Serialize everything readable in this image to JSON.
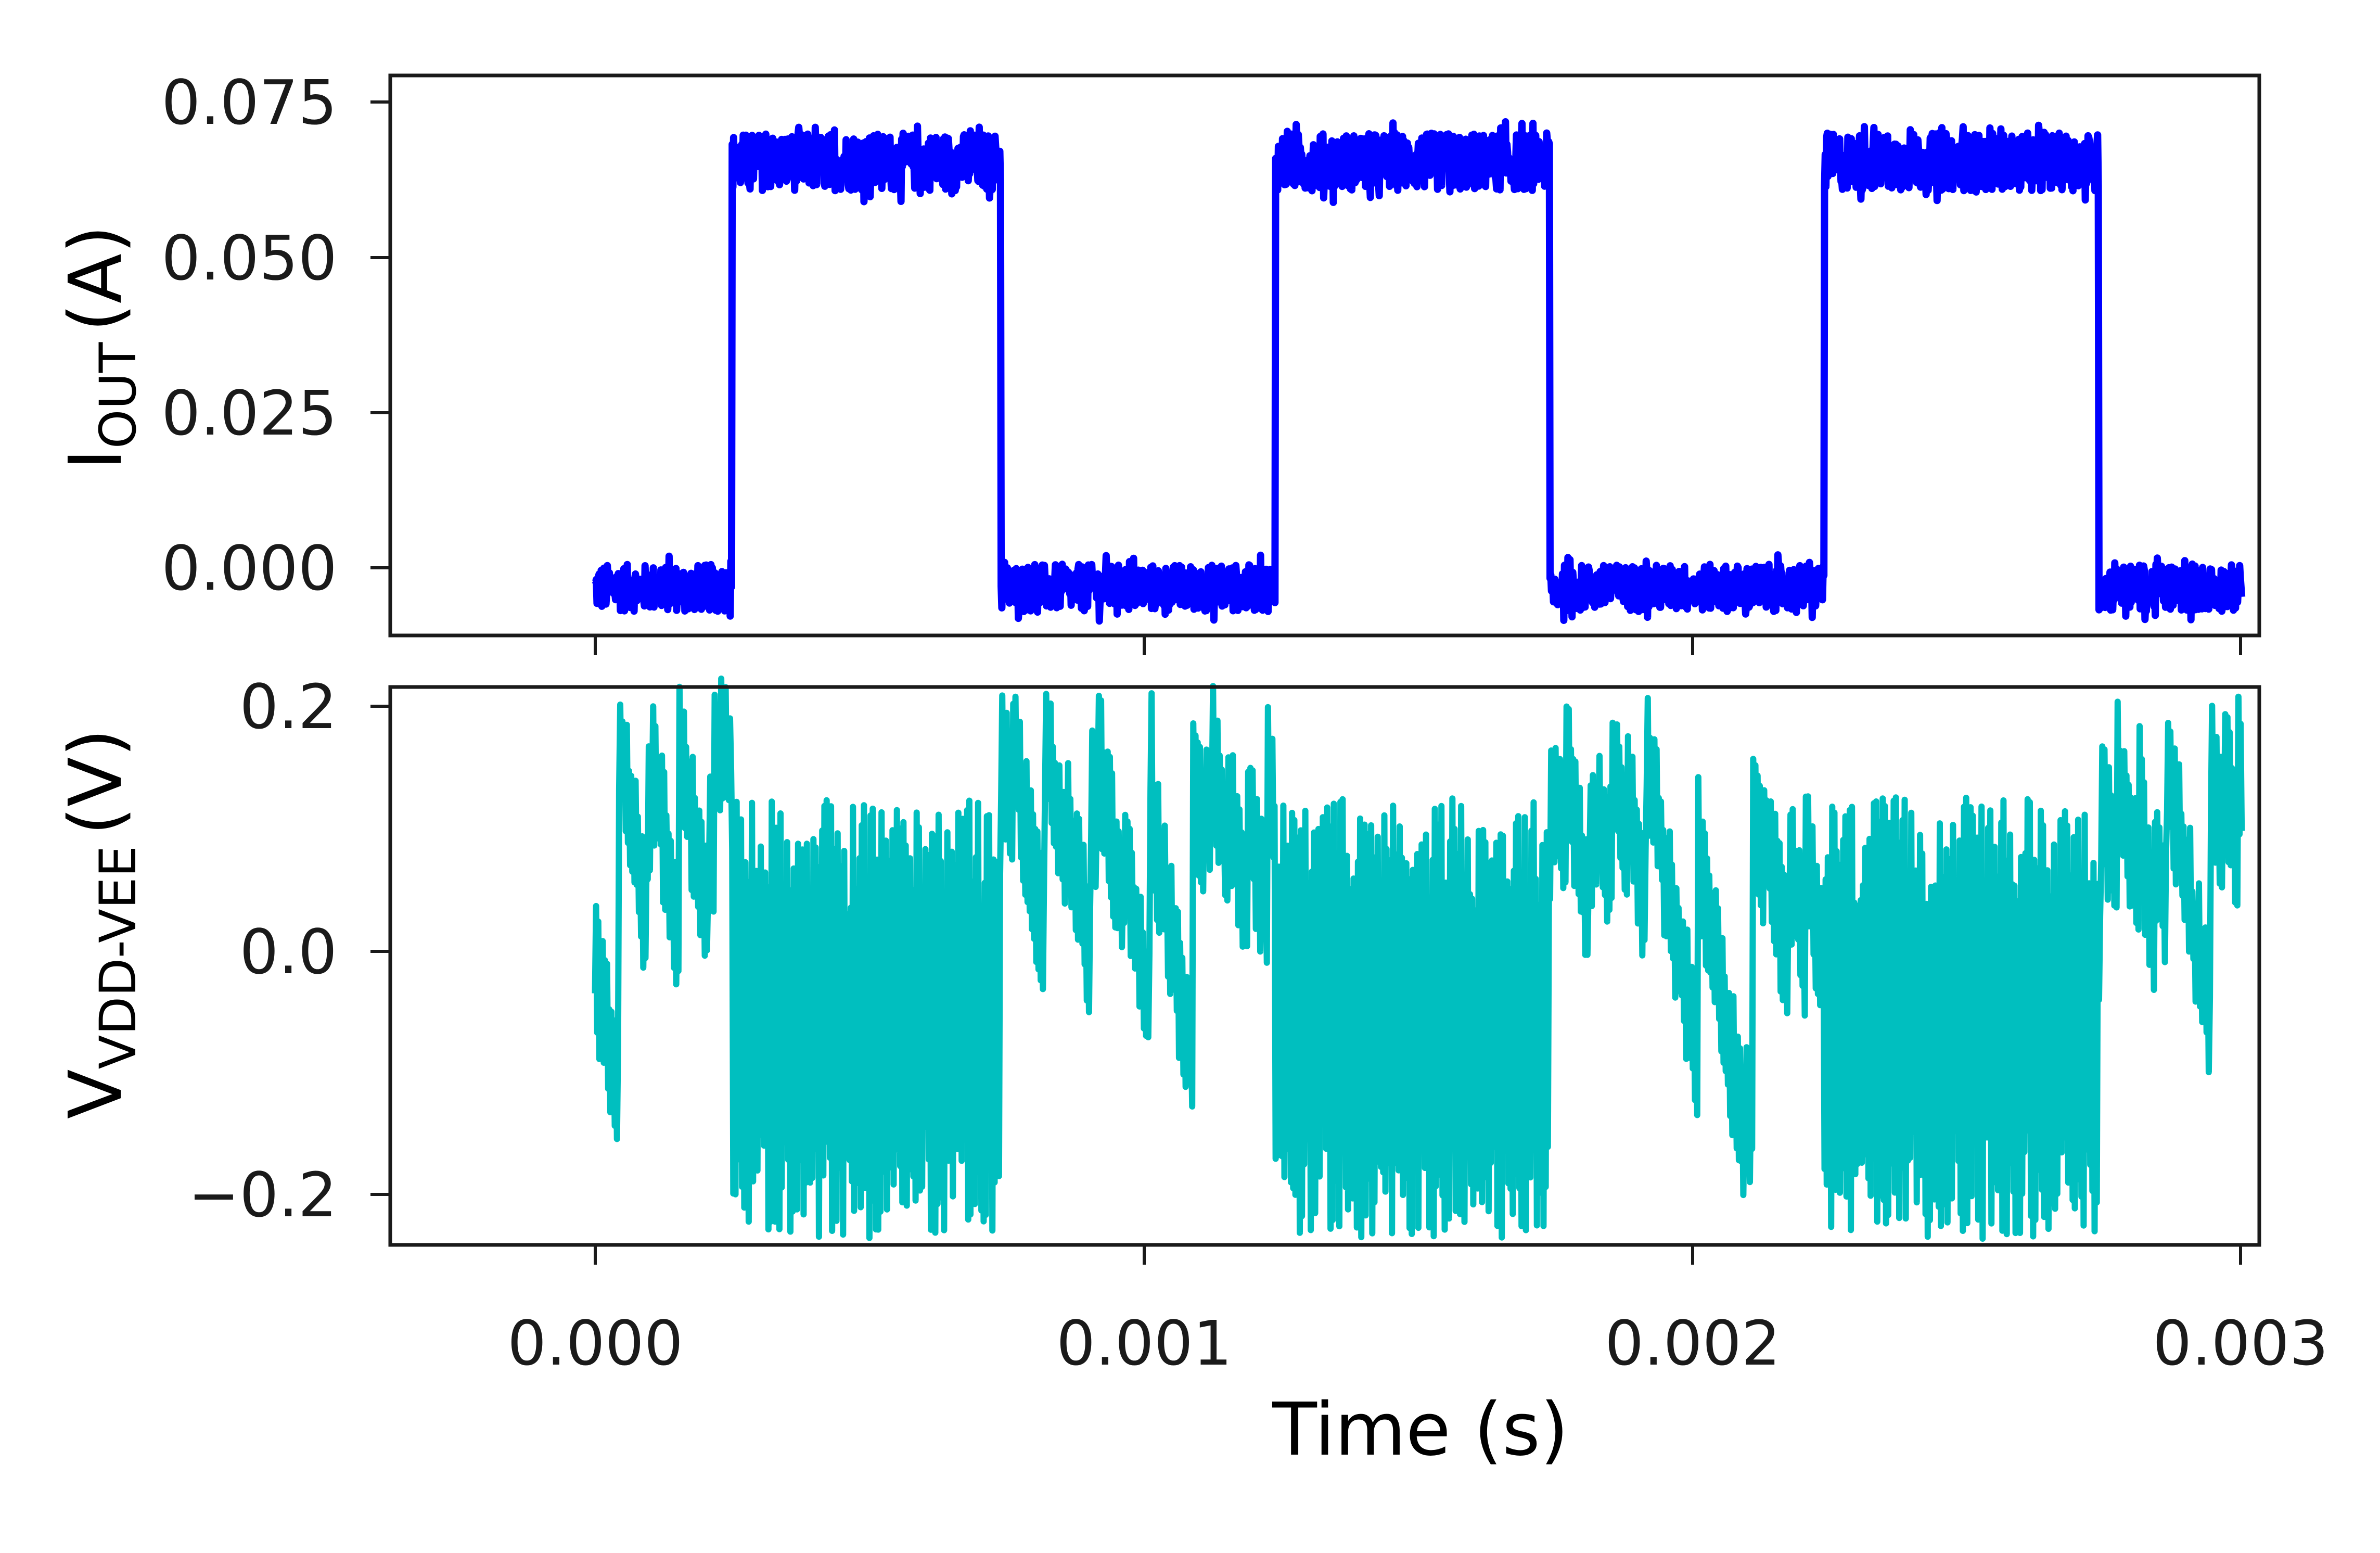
{
  "chart_data": [
    {
      "type": "line",
      "panel": "top",
      "title": "",
      "ylabel": "I_OUT (A)",
      "ylabel_main": "I",
      "ylabel_sub": "OUT",
      "ylabel_unit": "(A)",
      "xlabel": "",
      "xlim": [
        -0.000373,
        0.003032
      ],
      "ylim": [
        -0.0092,
        0.0815
      ],
      "yticks": [
        0.0,
        0.025,
        0.05,
        0.075
      ],
      "ytick_labels": [
        "0.000",
        "0.025",
        "0.050",
        "0.075"
      ],
      "xticks": [
        0.0,
        0.001,
        0.002,
        0.003
      ],
      "xtick_labels_visible": false,
      "grid": false,
      "legend": null,
      "series": [
        {
          "name": "I_OUT",
          "color": "#0000ff",
          "description": "Noisy square wave, period 1 ms, 50% duty",
          "x_start": 0.0,
          "x_end": 0.003,
          "low_level": -0.0015,
          "high_level": 0.0675,
          "noise_pp_low": 0.009,
          "noise_pp_high": 0.011,
          "transitions": [
            {
              "t": 0.00025,
              "edge": "rise"
            },
            {
              "t": 0.00074,
              "edge": "fall"
            },
            {
              "t": 0.00124,
              "edge": "rise"
            },
            {
              "t": 0.00174,
              "edge": "fall"
            },
            {
              "t": 0.00224,
              "edge": "rise"
            },
            {
              "t": 0.00274,
              "edge": "fall"
            }
          ],
          "x": [
            0.0,
            0.00025,
            0.00025,
            0.00074,
            0.00074,
            0.00124,
            0.00124,
            0.00174,
            0.00174,
            0.00224,
            0.00224,
            0.00274,
            0.00274,
            0.003
          ],
          "values": [
            -0.0015,
            -0.0015,
            0.0675,
            0.0675,
            -0.0015,
            -0.0015,
            0.0675,
            0.0675,
            -0.0015,
            -0.0015,
            0.0675,
            0.0675,
            -0.0015,
            -0.0015
          ]
        }
      ]
    },
    {
      "type": "line",
      "panel": "bottom",
      "title": "",
      "ylabel": "V_VDD-VEE (V)",
      "ylabel_main": "V",
      "ylabel_sub": "VDD-VEE",
      "ylabel_unit": "(V)",
      "xlabel": "Time (s)",
      "xlim": [
        -0.000373,
        0.003032
      ],
      "ylim": [
        -0.235,
        0.22
      ],
      "yticks": [
        -0.2,
        0.0,
        0.2
      ],
      "ytick_labels": [
        "−0.2",
        "0.0",
        "0.2"
      ],
      "xticks": [
        0.0,
        0.001,
        0.002,
        0.003
      ],
      "xtick_labels": [
        "0.000",
        "0.001",
        "0.002",
        "0.003"
      ],
      "grid": false,
      "legend": null,
      "series": [
        {
          "name": "V_VDD-VEE",
          "color": "#00bfbf",
          "description": "Ripple voltage: sawtooth decays (~0.15 V peaks) while I_OUT low; dense oscillation (~±0.18 V) while I_OUT high",
          "x_start": 0.0,
          "x_end": 0.003,
          "low_state_envelope": [
            -0.15,
            0.2
          ],
          "high_state_envelope": [
            -0.22,
            0.14
          ],
          "peaks": [
            {
              "t": 3e-05,
              "v": 0.2
            },
            {
              "t": 0.00011,
              "v": 0.15
            },
            {
              "t": 0.00019,
              "v": 0.17
            },
            {
              "t": 0.00075,
              "v": 0.18
            },
            {
              "t": 0.00085,
              "v": 0.18
            },
            {
              "t": 0.00102,
              "v": 0.17
            },
            {
              "t": 0.00122,
              "v": 0.15
            },
            {
              "t": 0.00176,
              "v": 0.18
            },
            {
              "t": 0.00182,
              "v": 0.19
            },
            {
              "t": 0.00188,
              "v": 0.2
            },
            {
              "t": 0.0019,
              "v": 0.2
            },
            {
              "t": 0.00202,
              "v": 0.17
            },
            {
              "t": 0.00276,
              "v": 0.19
            },
            {
              "t": 0.00289,
              "v": 0.17
            }
          ],
          "troughs": [
            {
              "t": 0.00011,
              "v": -0.15
            },
            {
              "t": 0.00048,
              "v": -0.19
            },
            {
              "t": 0.00148,
              "v": -0.22
            },
            {
              "t": 0.00251,
              "v": -0.21
            },
            {
              "t": 0.003,
              "v": -0.14
            }
          ]
        }
      ]
    }
  ],
  "figure": {
    "xlabel": "Time (s)",
    "top_ylabel": {
      "main": "I",
      "sub": "OUT",
      "unit": "(A)"
    },
    "bottom_ylabel": {
      "main": "V",
      "sub": "VDD-VEE",
      "unit": "(V)"
    },
    "top_ytick_labels": [
      "0.075",
      "0.050",
      "0.025",
      "0.000"
    ],
    "bottom_ytick_labels": [
      "0.2",
      "0.0",
      "−0.2"
    ],
    "xtick_labels": [
      "0.000",
      "0.001",
      "0.002",
      "0.003"
    ],
    "colors": {
      "iout": "#0000ff",
      "vripple": "#00bfbf",
      "axes": "#1a1a1a"
    }
  }
}
